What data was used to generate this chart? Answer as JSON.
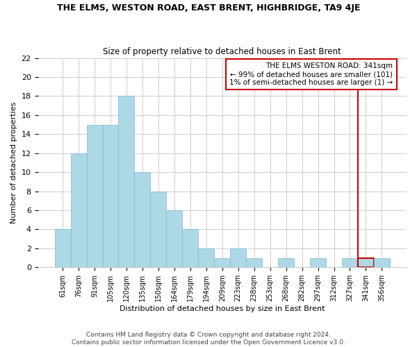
{
  "title": "THE ELMS, WESTON ROAD, EAST BRENT, HIGHBRIDGE, TA9 4JE",
  "subtitle": "Size of property relative to detached houses in East Brent",
  "xlabel": "Distribution of detached houses by size in East Brent",
  "ylabel": "Number of detached properties",
  "bar_labels": [
    "61sqm",
    "76sqm",
    "91sqm",
    "105sqm",
    "120sqm",
    "135sqm",
    "150sqm",
    "164sqm",
    "179sqm",
    "194sqm",
    "209sqm",
    "223sqm",
    "238sqm",
    "253sqm",
    "268sqm",
    "282sqm",
    "297sqm",
    "312sqm",
    "327sqm",
    "341sqm",
    "356sqm"
  ],
  "bar_values": [
    4,
    12,
    15,
    15,
    18,
    10,
    8,
    6,
    4,
    2,
    1,
    2,
    1,
    0,
    1,
    0,
    1,
    0,
    1,
    1,
    1
  ],
  "bar_color": "#add8e6",
  "bar_edgecolor": "#7fb8d4",
  "highlight_index": 19,
  "highlight_color": "#cc0000",
  "annotation_text": "THE ELMS WESTON ROAD: 341sqm\n← 99% of detached houses are smaller (101)\n1% of semi-detached houses are larger (1) →",
  "annotation_box_color": "#cc0000",
  "footer_text": "Contains HM Land Registry data © Crown copyright and database right 2024.\nContains public sector information licensed under the Open Government Licence v3.0.",
  "ylim": [
    0,
    22
  ],
  "yticks": [
    0,
    2,
    4,
    6,
    8,
    10,
    12,
    14,
    16,
    18,
    20,
    22
  ],
  "background_color": "#ffffff",
  "grid_color": "#cccccc"
}
